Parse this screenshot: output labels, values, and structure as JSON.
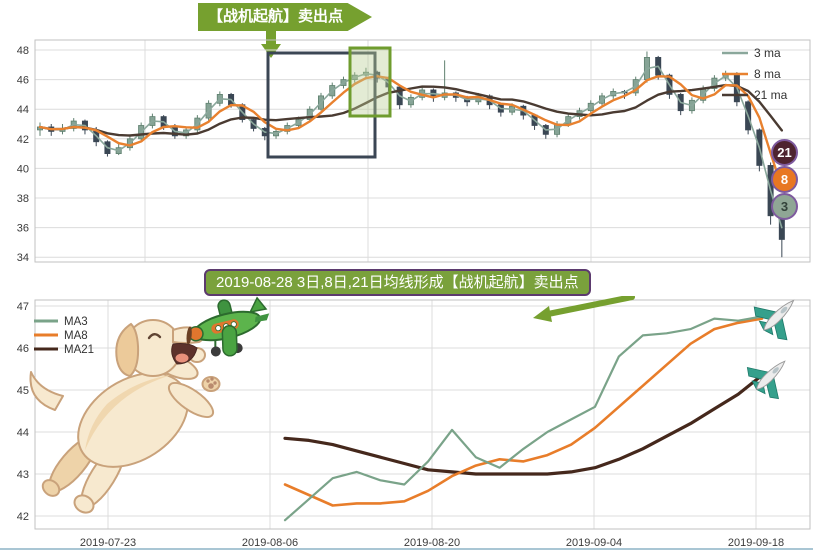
{
  "accent": {
    "banner_green": "#76a02f",
    "banner_border_purple": "#5c3a6e",
    "badge_ring_purple": "#7e5a9e",
    "grid": "#dcdcdc",
    "plot_border": "#c2c2c2",
    "tick_text": "#3a3a3a",
    "window_bottom_edge": "#a9c6d4"
  },
  "top_banner": {
    "text": "【战机起航】卖出点",
    "bg": "#76a02f",
    "text_color": "#ffffff"
  },
  "mid_banner": {
    "text": "2019-08-28 3日,8日,21日均线形成【战机起航】卖出点",
    "bg": "#7aa13c",
    "border": "#5c3a6e",
    "text_color": "#ffffff"
  },
  "badges": [
    {
      "label": "21",
      "color": "#4e2430",
      "text_color": "#ffffff"
    },
    {
      "label": "8",
      "color": "#e87722",
      "text_color": "#ffffff"
    },
    {
      "label": "3",
      "color": "#8fa695",
      "text_color": "#33423a"
    }
  ],
  "decorations": [
    "dog-catching-toy-plane-illustration",
    "fighter-jet-icon-top",
    "fighter-jet-icon-bottom",
    "green-annotation-arrows"
  ],
  "chart_data": [
    {
      "type": "candlestick",
      "title": "",
      "legend": [
        {
          "label": "3 ma",
          "color": "#8aa79b"
        },
        {
          "label": "8 ma",
          "color": "#e8812f"
        },
        {
          "label": "21 ma",
          "color": "#4a3b32"
        }
      ],
      "ma_windows": [
        3,
        8,
        21
      ],
      "yticks": [
        34,
        36,
        38,
        40,
        42,
        44,
        46,
        48
      ],
      "ylim": [
        33.6,
        48.7
      ],
      "grid": true,
      "candle_up_color": "#86a496",
      "candle_down_color": "#3a4754",
      "candles_ohlc": [
        [
          42.6,
          43.1,
          42.2,
          42.8
        ],
        [
          42.8,
          43.0,
          42.2,
          42.5
        ],
        [
          42.5,
          43.0,
          42.3,
          42.7
        ],
        [
          42.7,
          43.4,
          42.5,
          43.2
        ],
        [
          43.2,
          43.3,
          42.3,
          42.6
        ],
        [
          42.6,
          42.8,
          41.5,
          41.8
        ],
        [
          41.8,
          41.9,
          40.8,
          41.0
        ],
        [
          41.0,
          41.7,
          40.9,
          41.4
        ],
        [
          41.4,
          42.2,
          41.2,
          42.0
        ],
        [
          42.0,
          43.1,
          41.9,
          42.9
        ],
        [
          42.9,
          43.7,
          42.7,
          43.5
        ],
        [
          43.5,
          43.6,
          42.6,
          42.8
        ],
        [
          42.8,
          43.0,
          42.0,
          42.2
        ],
        [
          42.2,
          42.8,
          42.0,
          42.6
        ],
        [
          42.6,
          43.6,
          42.4,
          43.4
        ],
        [
          43.4,
          44.6,
          43.2,
          44.4
        ],
        [
          44.4,
          45.2,
          44.2,
          45.0
        ],
        [
          45.0,
          45.1,
          44.1,
          44.3
        ],
        [
          44.3,
          44.4,
          43.1,
          43.3
        ],
        [
          43.3,
          43.4,
          42.5,
          42.7
        ],
        [
          42.7,
          42.8,
          41.9,
          42.2
        ],
        [
          42.2,
          42.7,
          42.0,
          42.5
        ],
        [
          42.5,
          43.1,
          42.3,
          42.9
        ],
        [
          42.9,
          43.5,
          42.7,
          43.3
        ],
        [
          43.3,
          44.2,
          43.1,
          44.0
        ],
        [
          44.0,
          45.1,
          43.9,
          44.9
        ],
        [
          44.9,
          45.8,
          44.7,
          45.6
        ],
        [
          45.6,
          46.2,
          45.4,
          46.0
        ],
        [
          46.0,
          46.5,
          45.8,
          46.3
        ],
        [
          46.3,
          46.8,
          46.1,
          46.5
        ],
        [
          46.5,
          46.6,
          45.8,
          46.1
        ],
        [
          46.1,
          46.2,
          45.2,
          45.5
        ],
        [
          45.5,
          45.6,
          44.0,
          44.3
        ],
        [
          44.3,
          45.0,
          44.1,
          44.8
        ],
        [
          44.8,
          45.5,
          44.6,
          45.3
        ],
        [
          45.3,
          45.4,
          44.5,
          44.8
        ],
        [
          44.8,
          47.3,
          44.6,
          45.1
        ],
        [
          45.1,
          45.2,
          44.5,
          44.8
        ],
        [
          44.8,
          44.9,
          44.2,
          44.5
        ],
        [
          44.5,
          45.1,
          44.3,
          44.9
        ],
        [
          44.9,
          45.0,
          44.0,
          44.3
        ],
        [
          44.3,
          44.4,
          43.5,
          43.8
        ],
        [
          43.8,
          44.4,
          43.6,
          44.2
        ],
        [
          44.2,
          44.3,
          43.3,
          43.6
        ],
        [
          43.6,
          43.7,
          42.6,
          42.9
        ],
        [
          42.9,
          43.0,
          42.0,
          42.3
        ],
        [
          42.3,
          43.2,
          42.1,
          43.0
        ],
        [
          43.0,
          43.7,
          42.8,
          43.5
        ],
        [
          43.5,
          44.1,
          43.3,
          43.9
        ],
        [
          43.9,
          44.6,
          43.7,
          44.4
        ],
        [
          44.4,
          45.1,
          44.2,
          44.9
        ],
        [
          44.9,
          45.4,
          44.7,
          45.2
        ],
        [
          45.2,
          45.3,
          44.7,
          45.1
        ],
        [
          45.1,
          46.2,
          44.9,
          46.0
        ],
        [
          46.0,
          47.9,
          45.8,
          47.5
        ],
        [
          47.5,
          47.6,
          46.0,
          46.3
        ],
        [
          46.3,
          46.4,
          44.7,
          45.0
        ],
        [
          45.0,
          45.1,
          43.6,
          43.9
        ],
        [
          43.9,
          44.8,
          43.7,
          44.6
        ],
        [
          44.6,
          45.6,
          44.4,
          45.4
        ],
        [
          45.4,
          46.3,
          45.2,
          46.1
        ],
        [
          46.1,
          46.6,
          45.9,
          46.4
        ],
        [
          46.4,
          46.5,
          44.2,
          44.5
        ],
        [
          44.5,
          44.6,
          42.3,
          42.6
        ],
        [
          42.6,
          42.7,
          39.8,
          40.2
        ],
        [
          40.2,
          40.4,
          36.2,
          36.8
        ],
        [
          36.8,
          37.0,
          34.0,
          35.2
        ]
      ],
      "annotations": [
        {
          "name": "highlight-box-dark",
          "color": "#3b4654"
        },
        {
          "name": "highlight-box-green",
          "color": "#6f9c2e",
          "fill": "rgba(186,205,147,0.4)"
        },
        {
          "name": "banner-arrow-down",
          "color": "#76a02f"
        }
      ]
    },
    {
      "type": "line",
      "title": "",
      "legend": [
        {
          "label": "MA3",
          "color": "#7aa389"
        },
        {
          "label": "MA8",
          "color": "#e87d2a"
        },
        {
          "label": "MA21",
          "color": "#45281c"
        }
      ],
      "yticks": [
        42,
        43,
        44,
        45,
        46,
        47
      ],
      "ylim": [
        41.7,
        47.15
      ],
      "grid": true,
      "x_labels": [
        "2019-07-23",
        "2019-08-06",
        "2019-08-20",
        "2019-09-04",
        "2019-09-18"
      ],
      "series": [
        {
          "name": "MA3",
          "values": [
            41.9,
            42.4,
            42.9,
            43.05,
            42.85,
            42.75,
            43.3,
            44.05,
            43.4,
            43.15,
            43.6,
            44.0,
            44.3,
            44.6,
            45.8,
            46.3,
            46.35,
            46.45,
            46.7,
            46.65,
            46.75
          ]
        },
        {
          "name": "MA8",
          "values": [
            42.75,
            42.5,
            42.25,
            42.3,
            42.3,
            42.35,
            42.6,
            42.95,
            43.2,
            43.35,
            43.3,
            43.45,
            43.7,
            44.1,
            44.6,
            45.1,
            45.6,
            46.1,
            46.45,
            46.6,
            46.7
          ]
        },
        {
          "name": "MA21",
          "values": [
            43.85,
            43.8,
            43.7,
            43.55,
            43.4,
            43.25,
            43.1,
            43.05,
            43.0,
            43.0,
            43.0,
            43.0,
            43.05,
            43.15,
            43.35,
            43.6,
            43.9,
            44.2,
            44.55,
            44.9,
            45.35
          ]
        }
      ]
    }
  ]
}
